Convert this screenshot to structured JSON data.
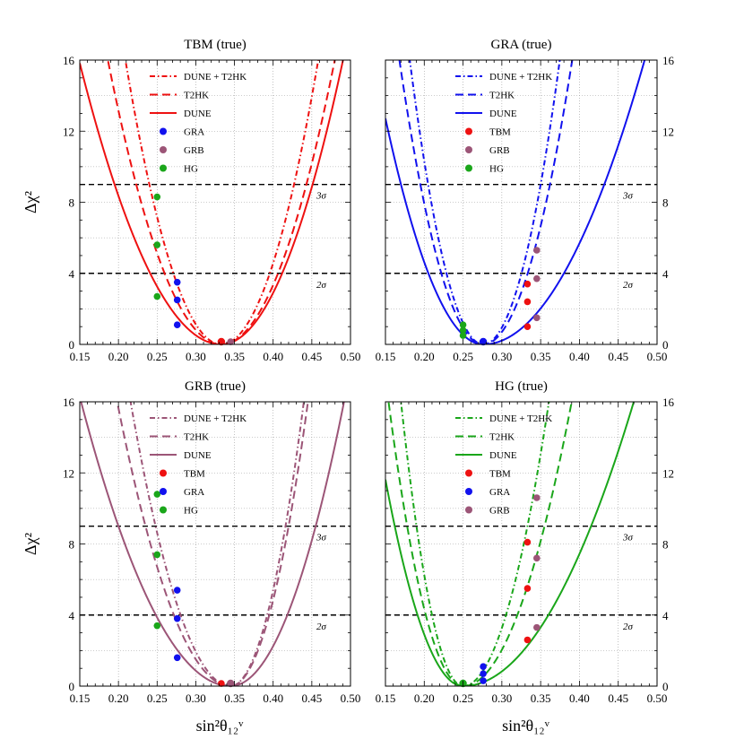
{
  "colors": {
    "tbm": "#ee1111",
    "gra": "#1111ee",
    "grb": "#9c5577",
    "hg": "#1aa61a",
    "sigma_line": "#000000",
    "grid": "#999999"
  },
  "line_labels": {
    "combined": "DUNE + T2HK",
    "t2hk": "T2HK",
    "dune": "DUNE"
  },
  "axes": {
    "xlabel": "sin²θ₁₂ᵛ",
    "ylabel": "Δχ²",
    "xlim": [
      0.15,
      0.5
    ],
    "ylim": [
      0,
      16
    ],
    "xticks": [
      "0.15",
      "0.20",
      "0.25",
      "0.30",
      "0.35",
      "0.40",
      "0.45",
      "0.50"
    ],
    "yticks": [
      "0",
      "4",
      "8",
      "12",
      "16"
    ],
    "sigma_levels": [
      {
        "value": 4,
        "label": "2σ"
      },
      {
        "value": 9,
        "label": "3σ"
      }
    ],
    "grid": true
  },
  "chart_data": [
    {
      "type": "line",
      "title": "TBM (true)",
      "color": "tbm",
      "series": [
        {
          "name": "DUNE + T2HK",
          "style": "dashdot",
          "min_x": 0.333,
          "curve_x": [
            0.24,
            0.333,
            0.427
          ],
          "curve_y": [
            9,
            0,
            9
          ]
        },
        {
          "name": "T2HK",
          "style": "dashed",
          "min_x": 0.333,
          "curve_x": [
            0.223,
            0.333,
            0.443
          ],
          "curve_y": [
            9,
            0,
            9
          ]
        },
        {
          "name": "DUNE",
          "style": "solid",
          "min_x": 0.333,
          "curve_x": [
            0.195,
            0.333,
            0.451
          ],
          "curve_y": [
            9,
            0,
            9
          ]
        }
      ],
      "markers": [
        {
          "name": "GRA",
          "color": "gra",
          "x": 0.276,
          "y": [
            1.1,
            2.5,
            3.5
          ]
        },
        {
          "name": "GRB",
          "color": "grb",
          "x": 0.345,
          "y": [
            0.15
          ]
        },
        {
          "name": "HG",
          "color": "hg",
          "x": 0.25,
          "y": [
            2.7,
            5.6,
            8.3
          ]
        }
      ],
      "true_marker": {
        "x": 0.333,
        "color": "tbm"
      }
    },
    {
      "type": "line",
      "title": "GRA (true)",
      "color": "gra",
      "series": [
        {
          "name": "DUNE + T2HK",
          "style": "dashdot",
          "min_x": 0.276,
          "curve_x": [
            0.205,
            0.276,
            0.35
          ],
          "curve_y": [
            9,
            0,
            9
          ]
        },
        {
          "name": "T2HK",
          "style": "dashed",
          "min_x": 0.276,
          "curve_x": [
            0.195,
            0.276,
            0.362
          ],
          "curve_y": [
            9,
            0,
            9
          ]
        },
        {
          "name": "DUNE",
          "style": "solid",
          "min_x": 0.276,
          "curve_x": [
            0.17,
            0.276,
            0.432
          ],
          "curve_y": [
            9,
            0,
            9
          ]
        }
      ],
      "markers": [
        {
          "name": "TBM",
          "color": "tbm",
          "x": 0.333,
          "y": [
            1.0,
            2.4,
            3.4
          ]
        },
        {
          "name": "GRB",
          "color": "grb",
          "x": 0.345,
          "y": [
            1.5,
            3.7,
            5.3
          ]
        },
        {
          "name": "HG",
          "color": "hg",
          "x": 0.25,
          "y": [
            0.5,
            0.8,
            1.1
          ]
        }
      ],
      "true_marker": {
        "x": 0.276,
        "color": "gra"
      }
    },
    {
      "type": "line",
      "title": "GRB (true)",
      "color": "grb",
      "series": [
        {
          "name": "DUNE + T2HK",
          "style": "dashdot",
          "min_x": 0.345,
          "curve_x": [
            0.248,
            0.345,
            0.416
          ],
          "curve_y": [
            9,
            0,
            9
          ]
        },
        {
          "name": "T2HK",
          "style": "dashed",
          "min_x": 0.345,
          "curve_x": [
            0.235,
            0.345,
            0.42
          ],
          "curve_y": [
            9,
            0,
            9
          ]
        },
        {
          "name": "DUNE",
          "style": "solid",
          "min_x": 0.345,
          "curve_x": [
            0.2,
            0.345,
            0.455
          ],
          "curve_y": [
            9,
            0,
            9
          ]
        }
      ],
      "markers": [
        {
          "name": "TBM",
          "color": "tbm",
          "x": 0.333,
          "y": [
            0.15
          ]
        },
        {
          "name": "GRA",
          "color": "gra",
          "x": 0.276,
          "y": [
            1.6,
            3.8,
            5.4
          ]
        },
        {
          "name": "HG",
          "color": "hg",
          "x": 0.25,
          "y": [
            3.4,
            7.4,
            10.8
          ]
        }
      ],
      "true_marker": {
        "x": 0.345,
        "color": "grb"
      }
    },
    {
      "type": "line",
      "title": "HG (true)",
      "color": "hg",
      "series": [
        {
          "name": "DUNE + T2HK",
          "style": "dashdot",
          "min_x": 0.25,
          "curve_x": [
            0.19,
            0.25,
            0.333
          ],
          "curve_y": [
            9,
            0,
            9
          ]
        },
        {
          "name": "T2HK",
          "style": "dashed",
          "min_x": 0.25,
          "curve_x": [
            0.178,
            0.25,
            0.355
          ],
          "curve_y": [
            9,
            0,
            9
          ]
        },
        {
          "name": "DUNE",
          "style": "solid",
          "min_x": 0.25,
          "curve_x": [
            0.162,
            0.25,
            0.415
          ],
          "curve_y": [
            9,
            0,
            9
          ]
        }
      ],
      "markers": [
        {
          "name": "TBM",
          "color": "tbm",
          "x": 0.333,
          "y": [
            2.6,
            5.5,
            8.1
          ]
        },
        {
          "name": "GRA",
          "color": "gra",
          "x": 0.276,
          "y": [
            0.3,
            0.7,
            1.1
          ]
        },
        {
          "name": "GRB",
          "color": "grb",
          "x": 0.345,
          "y": [
            3.3,
            7.2,
            10.6
          ]
        }
      ],
      "true_marker": {
        "x": 0.25,
        "color": "hg"
      }
    }
  ]
}
